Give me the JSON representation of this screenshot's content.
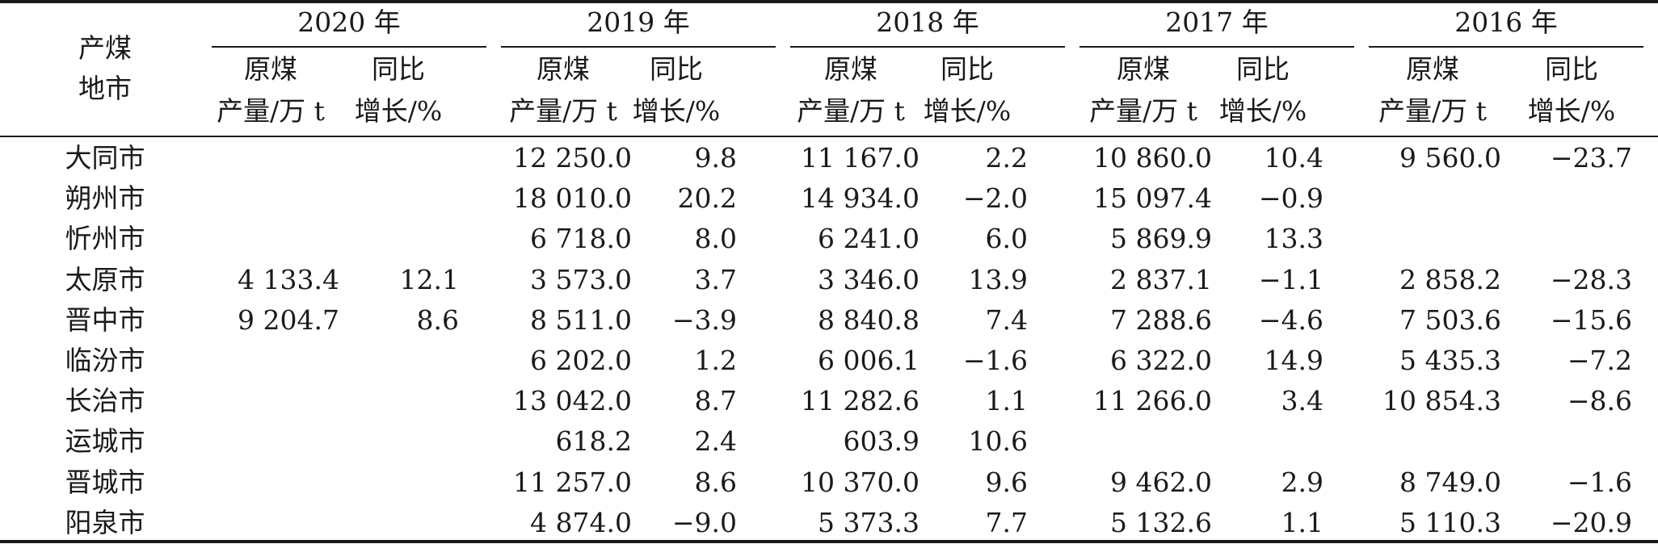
{
  "table": {
    "corner_line1": "产煤",
    "corner_line2": "地市",
    "years": [
      "2020 年",
      "2019 年",
      "2018 年",
      "2017 年",
      "2016 年"
    ],
    "sub_a_line1": "原煤",
    "sub_a_line2": "产量/万 t",
    "sub_b_line1": "同比",
    "sub_b_line2": "增长/%",
    "rows": [
      {
        "city": "大同市",
        "vals": [
          "",
          "",
          "12 250.0",
          "9.8",
          "11 167.0",
          "2.2",
          "10 860.0",
          "10.4",
          "9 560.0",
          "−23.7"
        ]
      },
      {
        "city": "朔州市",
        "vals": [
          "",
          "",
          "18 010.0",
          "20.2",
          "14 934.0",
          "−2.0",
          "15 097.4",
          "−0.9",
          "",
          ""
        ]
      },
      {
        "city": "忻州市",
        "vals": [
          "",
          "",
          "6 718.0",
          "8.0",
          "6 241.0",
          "6.0",
          "5 869.9",
          "13.3",
          "",
          ""
        ]
      },
      {
        "city": "太原市",
        "vals": [
          "4 133.4",
          "12.1",
          "3 573.0",
          "3.7",
          "3 346.0",
          "13.9",
          "2 837.1",
          "−1.1",
          "2 858.2",
          "−28.3"
        ]
      },
      {
        "city": "晋中市",
        "vals": [
          "9 204.7",
          "8.6",
          "8 511.0",
          "−3.9",
          "8 840.8",
          "7.4",
          "7 288.6",
          "−4.6",
          "7 503.6",
          "−15.6"
        ]
      },
      {
        "city": "临汾市",
        "vals": [
          "",
          "",
          "6 202.0",
          "1.2",
          "6 006.1",
          "−1.6",
          "6 322.0",
          "14.9",
          "5 435.3",
          "−7.2"
        ]
      },
      {
        "city": "长治市",
        "vals": [
          "",
          "",
          "13 042.0",
          "8.7",
          "11 282.6",
          "1.1",
          "11 266.0",
          "3.4",
          "10 854.3",
          "−8.6"
        ]
      },
      {
        "city": "运城市",
        "vals": [
          "",
          "",
          "618.2",
          "2.4",
          "603.9",
          "10.6",
          "",
          "",
          "",
          ""
        ]
      },
      {
        "city": "晋城市",
        "vals": [
          "",
          "",
          "11 257.0",
          "8.6",
          "10 370.0",
          "9.6",
          "9 462.0",
          "2.9",
          "8 749.0",
          "−1.6"
        ]
      },
      {
        "city": "阳泉市",
        "vals": [
          "",
          "",
          "4 874.0",
          "−9.0",
          "5 373.3",
          "7.7",
          "5 132.6",
          "1.1",
          "5 110.3",
          "−20.9"
        ]
      }
    ]
  }
}
